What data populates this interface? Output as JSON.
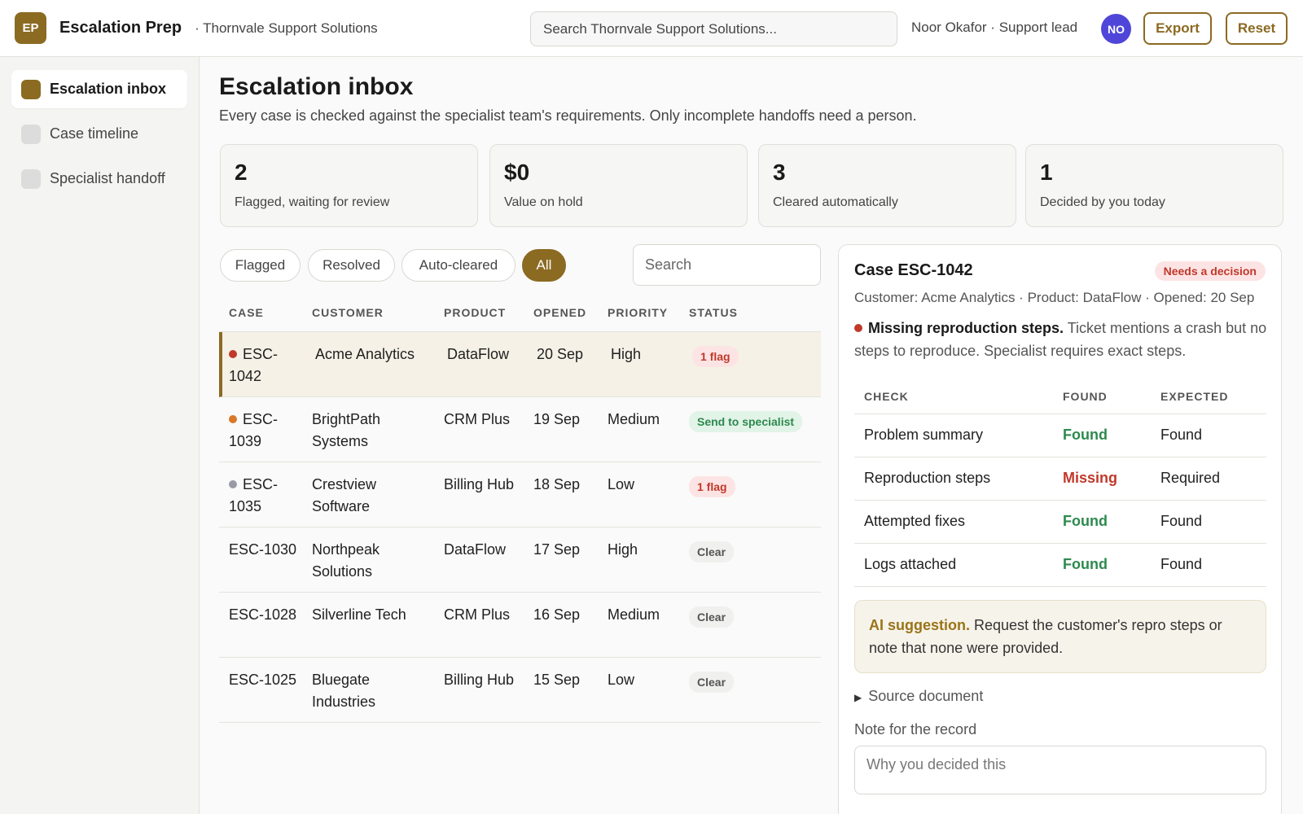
{
  "topbar": {
    "logo_text": "EP",
    "app_name": "Escalation Prep",
    "org_name": "· Thornvale Support Solutions",
    "search_placeholder": "Search Thornvale Support Solutions...",
    "user_label": "Noor Okafor · Support lead",
    "avatar_initials": "NO",
    "export_label": "Export",
    "reset_label": "Reset"
  },
  "sidebar": {
    "items": [
      {
        "label": "Escalation inbox",
        "active": true
      },
      {
        "label": "Case timeline",
        "active": false
      },
      {
        "label": "Specialist handoff",
        "active": false
      }
    ]
  },
  "main": {
    "title": "Escalation inbox",
    "subtitle": "Every case is checked against the specialist team's requirements. Only incomplete handoffs need a person.",
    "stats": [
      {
        "value": "2",
        "label": "Flagged, waiting for review"
      },
      {
        "value": "$0",
        "label": "Value on hold"
      },
      {
        "value": "3",
        "label": "Cleared automatically"
      },
      {
        "value": "1",
        "label": "Decided by you today"
      }
    ],
    "filters": [
      "Flagged",
      "Resolved",
      "Auto-cleared",
      "All"
    ],
    "active_filter": "All",
    "table_search_placeholder": "Search",
    "columns": [
      "CASE",
      "CUSTOMER",
      "PRODUCT",
      "OPENED",
      "PRIORITY",
      "STATUS"
    ],
    "rows": [
      {
        "case": "ESC-1042",
        "customer": "Acme Analytics",
        "product": "DataFlow",
        "opened": "20 Sep",
        "priority": "High",
        "status": "1 flag"
      },
      {
        "case": "ESC-1039",
        "customer": "BrightPath Systems",
        "product": "CRM Plus",
        "opened": "19 Sep",
        "priority": "Medium",
        "status": "Send to specialist"
      },
      {
        "case": "ESC-1035",
        "customer": "Crestview Software",
        "product": "Billing Hub",
        "opened": "18 Sep",
        "priority": "Low",
        "status": "1 flag"
      },
      {
        "case": "ESC-1030",
        "customer": "Northpeak Solutions",
        "product": "DataFlow",
        "opened": "17 Sep",
        "priority": "High",
        "status": "Clear"
      },
      {
        "case": "ESC-1028",
        "customer": "Silverline Tech",
        "product": "CRM Plus",
        "opened": "16 Sep",
        "priority": "Medium",
        "status": "Clear"
      },
      {
        "case": "ESC-1025",
        "customer": "Bluegate Industries",
        "product": "Billing Hub",
        "opened": "15 Sep",
        "priority": "Low",
        "status": "Clear"
      }
    ]
  },
  "detail": {
    "title": "Case ESC-1042",
    "badge": "Needs a decision",
    "meta": "Customer: Acme Analytics · Product: DataFlow · Opened: 20 Sep",
    "finding_title": "Missing reproduction steps.",
    "finding_text": " Ticket mentions a crash but no steps to reproduce. Specialist requires exact steps.",
    "check_columns": [
      "CHECK",
      "FOUND",
      "EXPECTED"
    ],
    "checks": [
      {
        "check": "Problem summary",
        "found": "Found",
        "expected": "Found"
      },
      {
        "check": "Reproduction steps",
        "found": "Missing",
        "expected": "Required"
      },
      {
        "check": "Attempted fixes",
        "found": "Found",
        "expected": "Found"
      },
      {
        "check": "Logs attached",
        "found": "Found",
        "expected": "Found"
      }
    ],
    "ai_label": "AI suggestion.",
    "ai_text": " Request the customer's repro steps or note that none were provided.",
    "source_doc_label": "Source document",
    "note_label": "Note for the record",
    "note_placeholder": "Why you decided this"
  },
  "colors": {
    "accent": "#8b6a22",
    "avatar": "#4f46d9",
    "flag_red": "#c0392b",
    "found_green": "#2d8a4e",
    "priority_dot_high": "#c0392b",
    "priority_dot_medium": "#d9782a",
    "priority_dot_low": "#9a9aa5"
  },
  "icons": {
    "expand": "triangle-right-icon"
  }
}
